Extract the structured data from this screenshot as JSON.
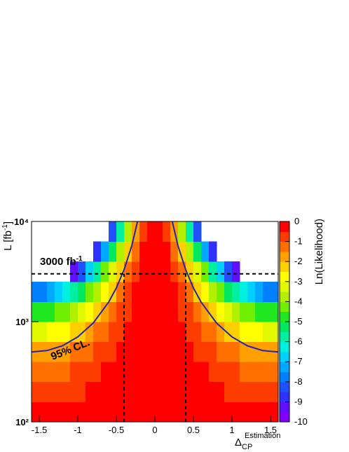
{
  "chart_data": {
    "type": "heatmap",
    "xlabel": {
      "text": "Δ",
      "sub": "CP",
      "sup": "Estimation"
    },
    "ylabel": {
      "text": "L [fb",
      "sup": "-1",
      "tail": "]"
    },
    "zlabel": "Ln(Likelihood)",
    "xlim": [
      -1.6,
      1.6
    ],
    "xticks": [
      -1.5,
      -1,
      -0.5,
      0,
      0.5,
      1,
      1.5
    ],
    "ylim": [
      100,
      10000
    ],
    "yticks": [
      {
        "value": 100,
        "label": "10²"
      },
      {
        "value": 1000,
        "label": "10³"
      },
      {
        "value": 10000,
        "label": "10⁴"
      }
    ],
    "log_y": true,
    "zlim": [
      -10,
      0
    ],
    "zticks": [
      0,
      -1,
      -2,
      -3,
      -4,
      -5,
      -6,
      -7,
      -8,
      -9,
      -10
    ],
    "palette": [
      "#8000ff",
      "#6010ff",
      "#3030ff",
      "#2050ff",
      "#0080ff",
      "#00a8ff",
      "#00d0ff",
      "#00f0e0",
      "#00f0a0",
      "#00e860",
      "#20e820",
      "#70f000",
      "#b0f000",
      "#e0f800",
      "#ffff00",
      "#ffd000",
      "#ffa000",
      "#ff7000",
      "#ff3c00",
      "#ff0000"
    ],
    "x": [
      -1.55,
      -1.45,
      -1.35,
      -1.25,
      -1.15,
      -1.05,
      -0.95,
      -0.85,
      -0.75,
      -0.65,
      -0.55,
      -0.45,
      -0.35,
      -0.25,
      -0.15,
      -0.05,
      0.05,
      0.15,
      0.25,
      0.35,
      0.45,
      0.55,
      0.65,
      0.75,
      0.85,
      0.95,
      1.05,
      1.15,
      1.25,
      1.35,
      1.45,
      1.55
    ],
    "y": [
      126,
      200,
      316,
      501,
      794,
      1259,
      1995,
      3162,
      5012,
      7943
    ],
    "z": [
      [
        -0.48,
        -0.48,
        -0.46,
        -0.44,
        -0.4,
        -0.36,
        -0.32,
        -0.27,
        -0.23,
        -0.18,
        -0.13,
        -0.09,
        -0.06,
        -0.03,
        -0.01,
        0,
        0,
        -0.01,
        -0.03,
        -0.06,
        -0.09,
        -0.13,
        -0.18,
        -0.23,
        -0.27,
        -0.32,
        -0.36,
        -0.4,
        -0.44,
        -0.46,
        -0.48,
        -0.48
      ],
      [
        -0.77,
        -0.76,
        -0.73,
        -0.69,
        -0.64,
        -0.58,
        -0.51,
        -0.43,
        -0.36,
        -0.28,
        -0.21,
        -0.15,
        -0.09,
        -0.05,
        -0.02,
        0,
        0,
        -0.02,
        -0.05,
        -0.09,
        -0.15,
        -0.21,
        -0.28,
        -0.36,
        -0.43,
        -0.51,
        -0.58,
        -0.64,
        -0.69,
        -0.73,
        -0.76,
        -0.77
      ],
      [
        -1.22,
        -1.2,
        -1.16,
        -1.1,
        -1.01,
        -0.92,
        -0.81,
        -0.69,
        -0.57,
        -0.45,
        -0.33,
        -0.23,
        -0.14,
        -0.07,
        -0.03,
        0,
        0,
        -0.03,
        -0.07,
        -0.14,
        -0.23,
        -0.33,
        -0.45,
        -0.57,
        -0.69,
        -0.81,
        -0.92,
        -1.01,
        -1.1,
        -1.16,
        -1.2,
        -1.22
      ],
      [
        -1.93,
        -1.9,
        -1.84,
        -1.74,
        -1.61,
        -1.45,
        -1.28,
        -1.09,
        -0.9,
        -0.71,
        -0.53,
        -0.36,
        -0.23,
        -0.12,
        -0.04,
        0,
        0,
        -0.04,
        -0.12,
        -0.23,
        -0.36,
        -0.53,
        -0.71,
        -0.9,
        -1.09,
        -1.28,
        -1.45,
        -1.61,
        -1.74,
        -1.84,
        -1.9,
        -1.93
      ],
      [
        -3.06,
        -3.01,
        -2.91,
        -2.75,
        -2.55,
        -2.3,
        -2.02,
        -1.73,
        -1.42,
        -1.12,
        -0.84,
        -0.58,
        -0.36,
        -0.19,
        -0.07,
        -0.01,
        -0.01,
        -0.07,
        -0.19,
        -0.36,
        -0.58,
        -0.84,
        -1.12,
        -1.42,
        -1.73,
        -2.02,
        -2.3,
        -2.55,
        -2.75,
        -2.91,
        -3.01,
        -3.06
      ],
      [
        -4.85,
        -4.78,
        -4.61,
        -4.37,
        -4.04,
        -3.65,
        -3.21,
        -2.74,
        -2.25,
        -1.78,
        -1.32,
        -0.92,
        -0.57,
        -0.3,
        -0.11,
        -0.01,
        -0.01,
        -0.11,
        -0.3,
        -0.57,
        -0.92,
        -1.32,
        -1.78,
        -2.25,
        -2.74,
        -3.21,
        -3.65,
        -4.04,
        -4.37,
        -4.61,
        -4.78,
        -4.85
      ],
      [
        -7.68,
        -7.57,
        -7.31,
        -6.92,
        -6.4,
        -5.78,
        -5.08,
        -4.34,
        -3.57,
        -2.81,
        -2.1,
        -1.45,
        -0.9,
        -0.47,
        -0.17,
        -0.02,
        -0.02,
        -0.17,
        -0.47,
        -0.9,
        -1.45,
        -2.1,
        -2.81,
        -3.57,
        -4.34,
        -5.08,
        -5.78,
        -6.4,
        -6.92,
        -7.31,
        -7.57,
        -7.68
      ],
      [
        null,
        null,
        null,
        null,
        null,
        -9.16,
        -8.05,
        -6.87,
        -5.65,
        -4.46,
        -3.32,
        -2.3,
        -1.43,
        -0.74,
        -0.27,
        -0.03,
        -0.03,
        -0.27,
        -0.74,
        -1.43,
        -2.3,
        -3.32,
        -4.46,
        -5.65,
        -6.87,
        -8.05,
        -9.16,
        null,
        null,
        null,
        null,
        null
      ],
      [
        null,
        null,
        null,
        null,
        null,
        null,
        null,
        null,
        -8.97,
        -7.07,
        -5.27,
        -3.65,
        -2.27,
        -1.18,
        -0.43,
        -0.05,
        -0.05,
        -0.43,
        -1.18,
        -2.27,
        -3.65,
        -5.27,
        -7.07,
        -8.97,
        null,
        null,
        null,
        null,
        null,
        null,
        null,
        null
      ],
      [
        null,
        null,
        null,
        null,
        null,
        null,
        null,
        null,
        null,
        null,
        -8.35,
        -5.79,
        -3.6,
        -1.87,
        -0.68,
        -0.08,
        -0.08,
        -0.68,
        -1.87,
        -3.6,
        -5.79,
        -8.35,
        null,
        null,
        null,
        null,
        null,
        null,
        null,
        null,
        null,
        null
      ]
    ],
    "contours": [
      {
        "label": "95% CL.",
        "color": "#2424b4",
        "x": [
          -1.6,
          -1.4,
          -1.2,
          -1.0,
          -0.8,
          -0.6,
          -0.5,
          -0.4,
          -0.3,
          -0.225,
          null,
          0.225,
          0.3,
          0.4,
          0.5,
          0.6,
          0.8,
          1.0,
          1.2,
          1.4,
          1.6
        ],
        "y": [
          499,
          514,
          574,
          704,
          969,
          1564,
          2170,
          3290,
          5712,
          10000,
          null,
          10000,
          5712,
          3290,
          2170,
          1564,
          969,
          704,
          574,
          514,
          499
        ]
      }
    ],
    "reference_lines": [
      {
        "axis": "y",
        "value": 3000
      },
      {
        "axis": "x",
        "value": -0.4
      },
      {
        "axis": "x",
        "value": 0.4
      }
    ],
    "annotations": [
      {
        "text": "3000 fb",
        "sup": "-1"
      }
    ]
  }
}
